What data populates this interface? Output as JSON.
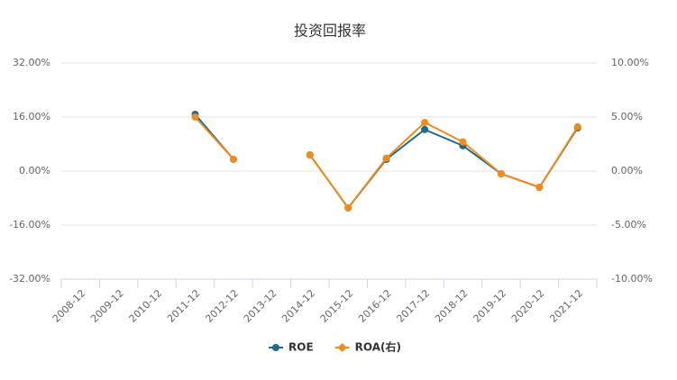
{
  "chart_data": {
    "type": "line",
    "title": "投资回报率",
    "categories": [
      "2008-12",
      "2009-12",
      "2010-12",
      "2011-12",
      "2012-12",
      "2013-12",
      "2014-12",
      "2015-12",
      "2016-12",
      "2017-12",
      "2018-12",
      "2019-12",
      "2020-12",
      "2021-12"
    ],
    "series": [
      {
        "name": "ROE",
        "color": "#21688f",
        "values": [
          null,
          null,
          null,
          16.8,
          3.5,
          null,
          4.8,
          -10.9,
          3.5,
          12.3,
          7.5,
          -0.8,
          -4.8,
          12.8
        ]
      },
      {
        "name": "ROA(右)",
        "color": "#f08c1e",
        "axis": "y2",
        "values": [
          null,
          null,
          null,
          5.0,
          1.1,
          null,
          1.5,
          -3.4,
          1.2,
          4.5,
          2.7,
          -0.25,
          -1.5,
          4.1
        ]
      }
    ],
    "ylim": [
      -32,
      32
    ],
    "yticks": [
      {
        "value": -32,
        "label": "-32.00%"
      },
      {
        "value": -16,
        "label": "-16.00%"
      },
      {
        "value": 0,
        "label": "0.00%"
      },
      {
        "value": 16,
        "label": "16.00%"
      },
      {
        "value": 32,
        "label": "32.00%"
      }
    ],
    "y2lim": [
      -10,
      10
    ],
    "y2ticks": [
      {
        "value": -10,
        "label": "-10.00%"
      },
      {
        "value": -5,
        "label": "-5.00%"
      },
      {
        "value": 0,
        "label": "0.00%"
      },
      {
        "value": 5,
        "label": "5.00%"
      },
      {
        "value": 10,
        "label": "10.00%"
      }
    ],
    "grid": true
  }
}
